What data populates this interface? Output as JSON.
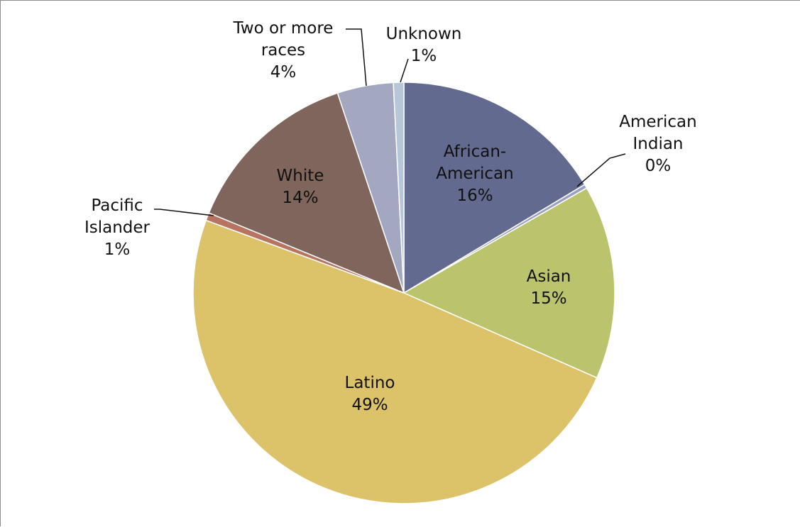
{
  "chart_data": {
    "type": "pie",
    "slices": [
      {
        "key": "african_american",
        "label_lines": [
          "African-",
          "American"
        ],
        "pct_label": "16%",
        "value": 16.4,
        "color": "#636a8f"
      },
      {
        "key": "american_indian",
        "label_lines": [
          "American",
          "Indian"
        ],
        "pct_label": "0%",
        "value": 0.3,
        "color": "#9aa0c2"
      },
      {
        "key": "asian",
        "label_lines": [
          "Asian"
        ],
        "pct_label": "15%",
        "value": 14.9,
        "color": "#bbc36c"
      },
      {
        "key": "latino",
        "label_lines": [
          "Latino"
        ],
        "pct_label": "49%",
        "value": 49.0,
        "color": "#dcc36a"
      },
      {
        "key": "pacific_islander",
        "label_lines": [
          "Pacific",
          "Islander"
        ],
        "pct_label": "1%",
        "value": 0.6,
        "color": "#b77460"
      },
      {
        "key": "white",
        "label_lines": [
          "White"
        ],
        "pct_label": "14%",
        "value": 13.7,
        "color": "#7f655c"
      },
      {
        "key": "two_or_more_races",
        "label_lines": [
          "Two or more",
          "races"
        ],
        "pct_label": "4%",
        "value": 4.3,
        "color": "#a3a8c0"
      },
      {
        "key": "unknown",
        "label_lines": [
          "Unknown"
        ],
        "pct_label": "1%",
        "value": 0.8,
        "color": "#b5c7d9"
      }
    ],
    "start": "12 o'clock",
    "direction": "clockwise",
    "legend": "none"
  }
}
